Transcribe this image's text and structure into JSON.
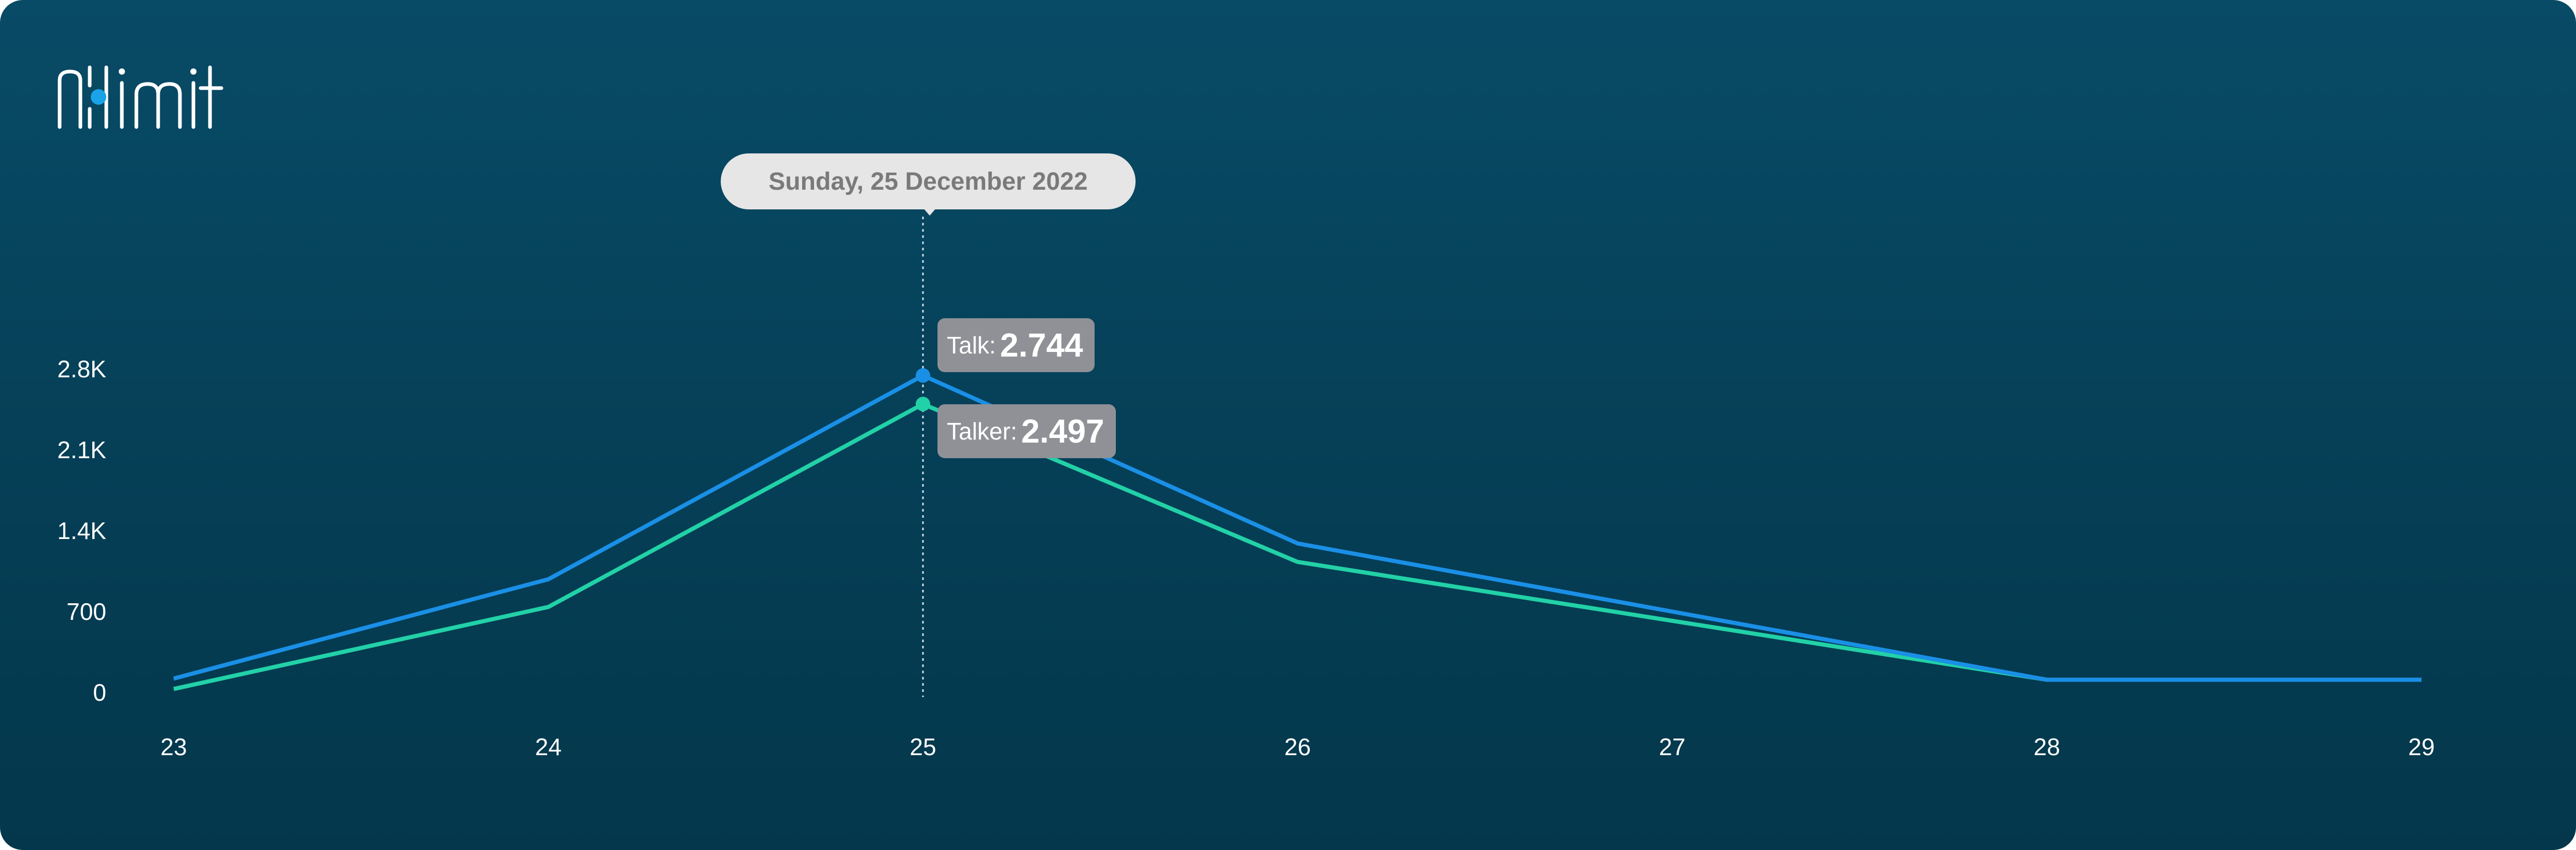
{
  "brand": {
    "name": "nlimit",
    "logo_icon": "nlimit-logo",
    "dot_color": "#1aa3e8"
  },
  "colors": {
    "talk": "#1a8fe6",
    "talker": "#22d1a7",
    "background": "#064560"
  },
  "tooltip": {
    "date": "Sunday, 25 December 2022",
    "talk_label": "Talk:",
    "talk_value": "2.744",
    "talker_label": "Talker:",
    "talker_value": "2.497"
  },
  "chart_data": {
    "type": "line",
    "x": [
      "23",
      "24",
      "25",
      "26",
      "27",
      "28",
      "29"
    ],
    "series": [
      {
        "name": "Talk",
        "color": "#1a8fe6",
        "values": [
          120,
          980,
          2744,
          1290,
          700,
          110,
          110
        ]
      },
      {
        "name": "Talker",
        "color": "#22d1a7",
        "values": [
          30,
          740,
          2497,
          1130,
          620,
          110,
          110
        ]
      }
    ],
    "yticks": [
      "0",
      "700",
      "1.4K",
      "2.1K",
      "2.8K"
    ],
    "ytick_values": [
      0,
      700,
      1400,
      2100,
      2800
    ],
    "ylim": [
      0,
      2800
    ],
    "highlight_index": 2,
    "grid": false,
    "legend": "none"
  }
}
